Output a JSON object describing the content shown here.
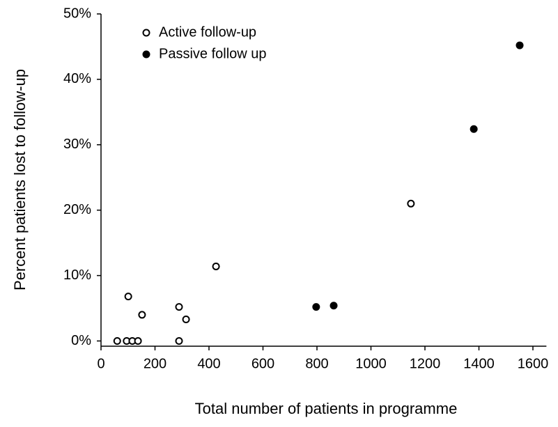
{
  "chart_data": {
    "type": "scatter",
    "xlabel": "Total number of patients in programme",
    "ylabel": "Percent patients lost to follow-up",
    "xlim": [
      0,
      1650
    ],
    "xticks": [
      0,
      200,
      400,
      600,
      800,
      1000,
      1200,
      1400,
      1600
    ],
    "ylim": [
      -0.8,
      50
    ],
    "yticks": [
      {
        "value": 0,
        "label": "0%"
      },
      {
        "value": 10,
        "label": "10%"
      },
      {
        "value": 20,
        "label": "20%"
      },
      {
        "value": 30,
        "label": "30%"
      },
      {
        "value": 40,
        "label": "40%"
      },
      {
        "value": 50,
        "label": "50%"
      }
    ],
    "legend": "top-left",
    "grid": false,
    "series": [
      {
        "name": "Active follow-up",
        "color": "#000000",
        "filled": false,
        "x": [
          60,
          95,
          116,
          137,
          101,
          152,
          289,
          289,
          315,
          426,
          1148
        ],
        "values": [
          0,
          0,
          0,
          0,
          6.8,
          4.0,
          5.2,
          0,
          3.3,
          11.4,
          21.0
        ]
      },
      {
        "name": "Passive follow up",
        "color": "#000000",
        "filled": true,
        "x": [
          797,
          862,
          1381,
          1551
        ],
        "values": [
          5.2,
          5.4,
          32.4,
          45.2
        ]
      }
    ]
  }
}
